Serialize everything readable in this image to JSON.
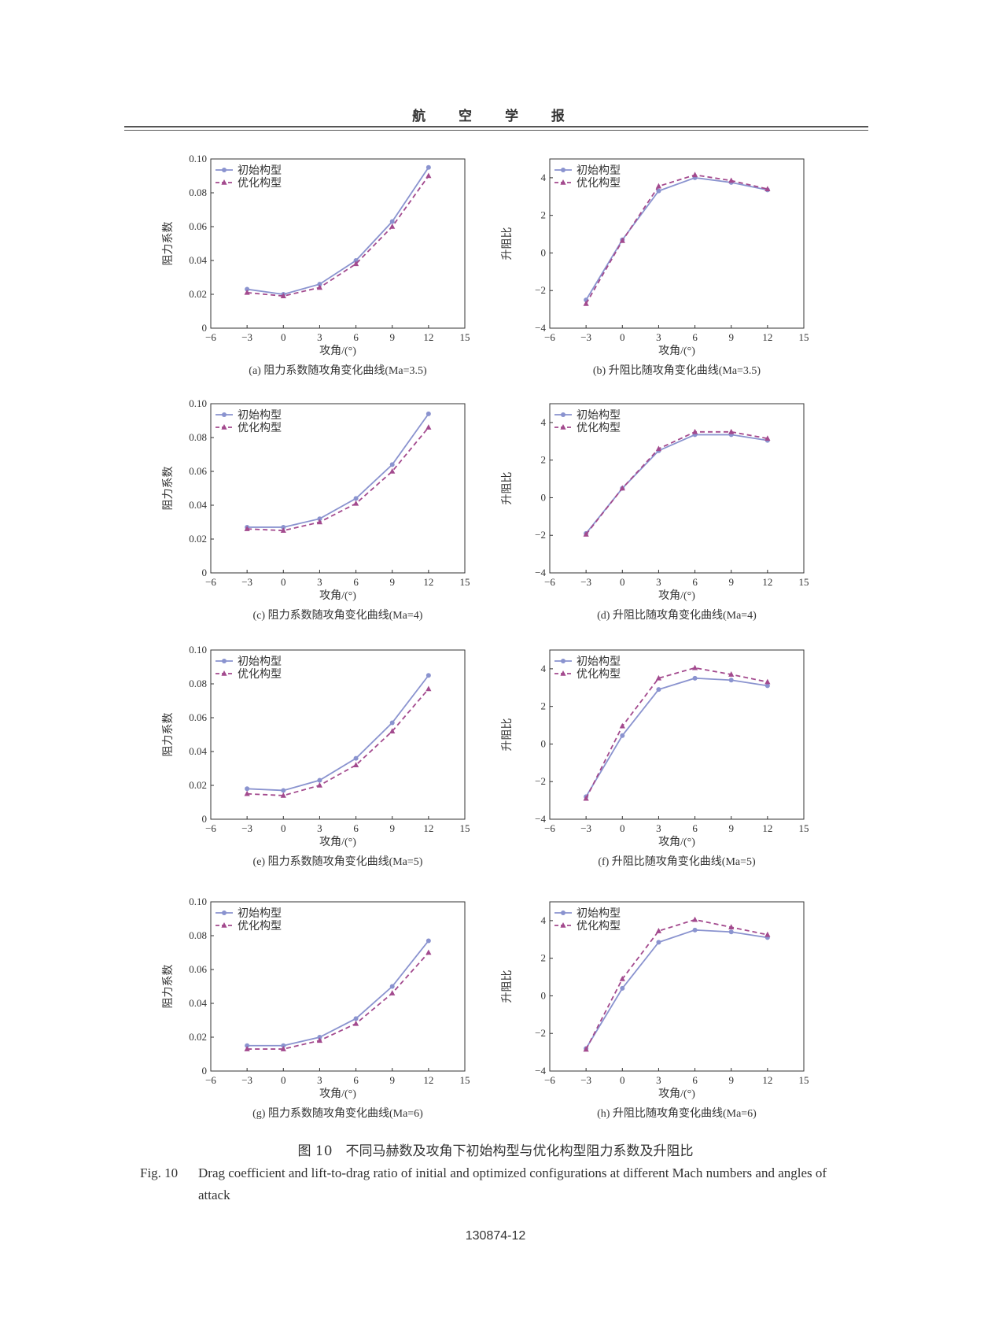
{
  "header": {
    "journal_title": "航 空 学 报"
  },
  "colors": {
    "initial": "#8a93cf",
    "optimized": "#a34a8e"
  },
  "legend_labels": {
    "initial": "初始构型",
    "optimized": "优化构型"
  },
  "chart_data": [
    {
      "type": "line",
      "panel": "a",
      "caption": "(a) 阻力系数随攻角变化曲线(Ma=3.5)",
      "xlabel": "攻角/(°)",
      "ylabel": "阻力系数",
      "xlim": [
        -6,
        15
      ],
      "ylim": [
        0,
        0.1
      ],
      "xticks": [
        -6,
        -3,
        0,
        3,
        6,
        9,
        12,
        15
      ],
      "yticks": [
        0,
        0.02,
        0.04,
        0.06,
        0.08,
        0.1
      ],
      "ytick_labels": [
        "0",
        "0.02",
        "0.04",
        "0.06",
        "0.08",
        "0.10"
      ],
      "x": [
        -3,
        0,
        3,
        6,
        9,
        12
      ],
      "series": [
        {
          "name": "初始构型",
          "values": [
            0.023,
            0.02,
            0.026,
            0.04,
            0.063,
            0.095
          ]
        },
        {
          "name": "优化构型",
          "values": [
            0.021,
            0.019,
            0.024,
            0.038,
            0.06,
            0.09
          ]
        }
      ],
      "legend": "top-left"
    },
    {
      "type": "line",
      "panel": "b",
      "caption": "(b) 升阻比随攻角变化曲线(Ma=3.5)",
      "xlabel": "攻角/(°)",
      "ylabel": "升阻比",
      "xlim": [
        -6,
        15
      ],
      "ylim": [
        -4,
        5
      ],
      "xticks": [
        -6,
        -3,
        0,
        3,
        6,
        9,
        12,
        15
      ],
      "yticks": [
        -4,
        -2,
        0,
        2,
        4
      ],
      "ytick_labels": [
        "−4",
        "−2",
        "0",
        "2",
        "4"
      ],
      "x": [
        -3,
        0,
        3,
        6,
        9,
        12
      ],
      "series": [
        {
          "name": "初始构型",
          "values": [
            -2.5,
            0.7,
            3.3,
            4.0,
            3.75,
            3.35
          ]
        },
        {
          "name": "优化构型",
          "values": [
            -2.7,
            0.65,
            3.55,
            4.15,
            3.85,
            3.4
          ]
        }
      ],
      "legend": "top-left"
    },
    {
      "type": "line",
      "panel": "c",
      "caption": "(c) 阻力系数随攻角变化曲线(Ma=4)",
      "xlabel": "攻角/(°)",
      "ylabel": "阻力系数",
      "xlim": [
        -6,
        15
      ],
      "ylim": [
        0,
        0.1
      ],
      "xticks": [
        -6,
        -3,
        0,
        3,
        6,
        9,
        12,
        15
      ],
      "yticks": [
        0,
        0.02,
        0.04,
        0.06,
        0.08,
        0.1
      ],
      "ytick_labels": [
        "0",
        "0.02",
        "0.04",
        "0.06",
        "0.08",
        "0.10"
      ],
      "x": [
        -3,
        0,
        3,
        6,
        9,
        12
      ],
      "series": [
        {
          "name": "初始构型",
          "values": [
            0.027,
            0.027,
            0.032,
            0.044,
            0.064,
            0.094
          ]
        },
        {
          "name": "优化构型",
          "values": [
            0.026,
            0.025,
            0.03,
            0.041,
            0.06,
            0.086
          ]
        }
      ],
      "legend": "top-left"
    },
    {
      "type": "line",
      "panel": "d",
      "caption": "(d) 升阻比随攻角变化曲线(Ma=4)",
      "xlabel": "攻角/(°)",
      "ylabel": "升阻比",
      "xlim": [
        -6,
        15
      ],
      "ylim": [
        -4,
        5
      ],
      "xticks": [
        -6,
        -3,
        0,
        3,
        6,
        9,
        12,
        15
      ],
      "yticks": [
        -4,
        -2,
        0,
        2,
        4
      ],
      "ytick_labels": [
        "−4",
        "−2",
        "0",
        "2",
        "4"
      ],
      "x": [
        -3,
        0,
        3,
        6,
        9,
        12
      ],
      "series": [
        {
          "name": "初始构型",
          "values": [
            -1.9,
            0.5,
            2.5,
            3.35,
            3.35,
            3.05
          ]
        },
        {
          "name": "优化构型",
          "values": [
            -1.95,
            0.5,
            2.6,
            3.5,
            3.5,
            3.15
          ]
        }
      ],
      "legend": "top-left"
    },
    {
      "type": "line",
      "panel": "e",
      "caption": "(e) 阻力系数随攻角变化曲线(Ma=5)",
      "xlabel": "攻角/(°)",
      "ylabel": "阻力系数",
      "xlim": [
        -6,
        15
      ],
      "ylim": [
        0,
        0.1
      ],
      "xticks": [
        -6,
        -3,
        0,
        3,
        6,
        9,
        12,
        15
      ],
      "yticks": [
        0,
        0.02,
        0.04,
        0.06,
        0.08,
        0.1
      ],
      "ytick_labels": [
        "0",
        "0.02",
        "0.04",
        "0.06",
        "0.08",
        "0.10"
      ],
      "x": [
        -3,
        0,
        3,
        6,
        9,
        12
      ],
      "series": [
        {
          "name": "初始构型",
          "values": [
            0.018,
            0.017,
            0.023,
            0.036,
            0.057,
            0.085
          ]
        },
        {
          "name": "优化构型",
          "values": [
            0.015,
            0.014,
            0.02,
            0.032,
            0.052,
            0.077
          ]
        }
      ],
      "legend": "top-left"
    },
    {
      "type": "line",
      "panel": "f",
      "caption": "(f) 升阻比随攻角变化曲线(Ma=5)",
      "xlabel": "攻角/(°)",
      "ylabel": "升阻比",
      "xlim": [
        -6,
        15
      ],
      "ylim": [
        -4,
        5
      ],
      "xticks": [
        -6,
        -3,
        0,
        3,
        6,
        9,
        12,
        15
      ],
      "yticks": [
        -4,
        -2,
        0,
        2,
        4
      ],
      "ytick_labels": [
        "−4",
        "−2",
        "0",
        "2",
        "4"
      ],
      "x": [
        -3,
        0,
        3,
        6,
        9,
        12
      ],
      "series": [
        {
          "name": "初始构型",
          "values": [
            -2.8,
            0.45,
            2.9,
            3.5,
            3.4,
            3.1
          ]
        },
        {
          "name": "优化构型",
          "values": [
            -2.9,
            0.95,
            3.5,
            4.05,
            3.7,
            3.3
          ]
        }
      ],
      "legend": "top-left"
    },
    {
      "type": "line",
      "panel": "g",
      "caption": "(g) 阻力系数随攻角变化曲线(Ma=6)",
      "xlabel": "攻角/(°)",
      "ylabel": "阻力系数",
      "xlim": [
        -6,
        15
      ],
      "ylim": [
        0,
        0.1
      ],
      "xticks": [
        -6,
        -3,
        0,
        3,
        6,
        9,
        12,
        15
      ],
      "yticks": [
        0,
        0.02,
        0.04,
        0.06,
        0.08,
        0.1
      ],
      "ytick_labels": [
        "0",
        "0.02",
        "0.04",
        "0.06",
        "0.08",
        "0.10"
      ],
      "x": [
        -3,
        0,
        3,
        6,
        9,
        12
      ],
      "series": [
        {
          "name": "初始构型",
          "values": [
            0.015,
            0.015,
            0.02,
            0.031,
            0.05,
            0.077
          ]
        },
        {
          "name": "优化构型",
          "values": [
            0.013,
            0.013,
            0.018,
            0.028,
            0.046,
            0.07
          ]
        }
      ],
      "legend": "top-left"
    },
    {
      "type": "line",
      "panel": "h",
      "caption": "(h) 升阻比随攻角变化曲线(Ma=6)",
      "xlabel": "攻角/(°)",
      "ylabel": "升阻比",
      "xlim": [
        -6,
        15
      ],
      "ylim": [
        -4,
        5
      ],
      "xticks": [
        -6,
        -3,
        0,
        3,
        6,
        9,
        12,
        15
      ],
      "yticks": [
        -4,
        -2,
        0,
        2,
        4
      ],
      "ytick_labels": [
        "−4",
        "−2",
        "0",
        "2",
        "4"
      ],
      "x": [
        -3,
        0,
        3,
        6,
        9,
        12
      ],
      "series": [
        {
          "name": "初始构型",
          "values": [
            -2.8,
            0.4,
            2.85,
            3.5,
            3.4,
            3.1
          ]
        },
        {
          "name": "优化构型",
          "values": [
            -2.85,
            0.9,
            3.45,
            4.05,
            3.65,
            3.25
          ]
        }
      ],
      "legend": "top-left"
    }
  ],
  "figure_caption": {
    "zh": "图 10　不同马赫数及攻角下初始构型与优化构型阻力系数及升阻比",
    "en_label": "Fig. 10",
    "en_text": "Drag coefficient and lift-to-drag ratio of initial and optimized configurations at different Mach numbers and angles of attack"
  },
  "page_number": "130874-12"
}
